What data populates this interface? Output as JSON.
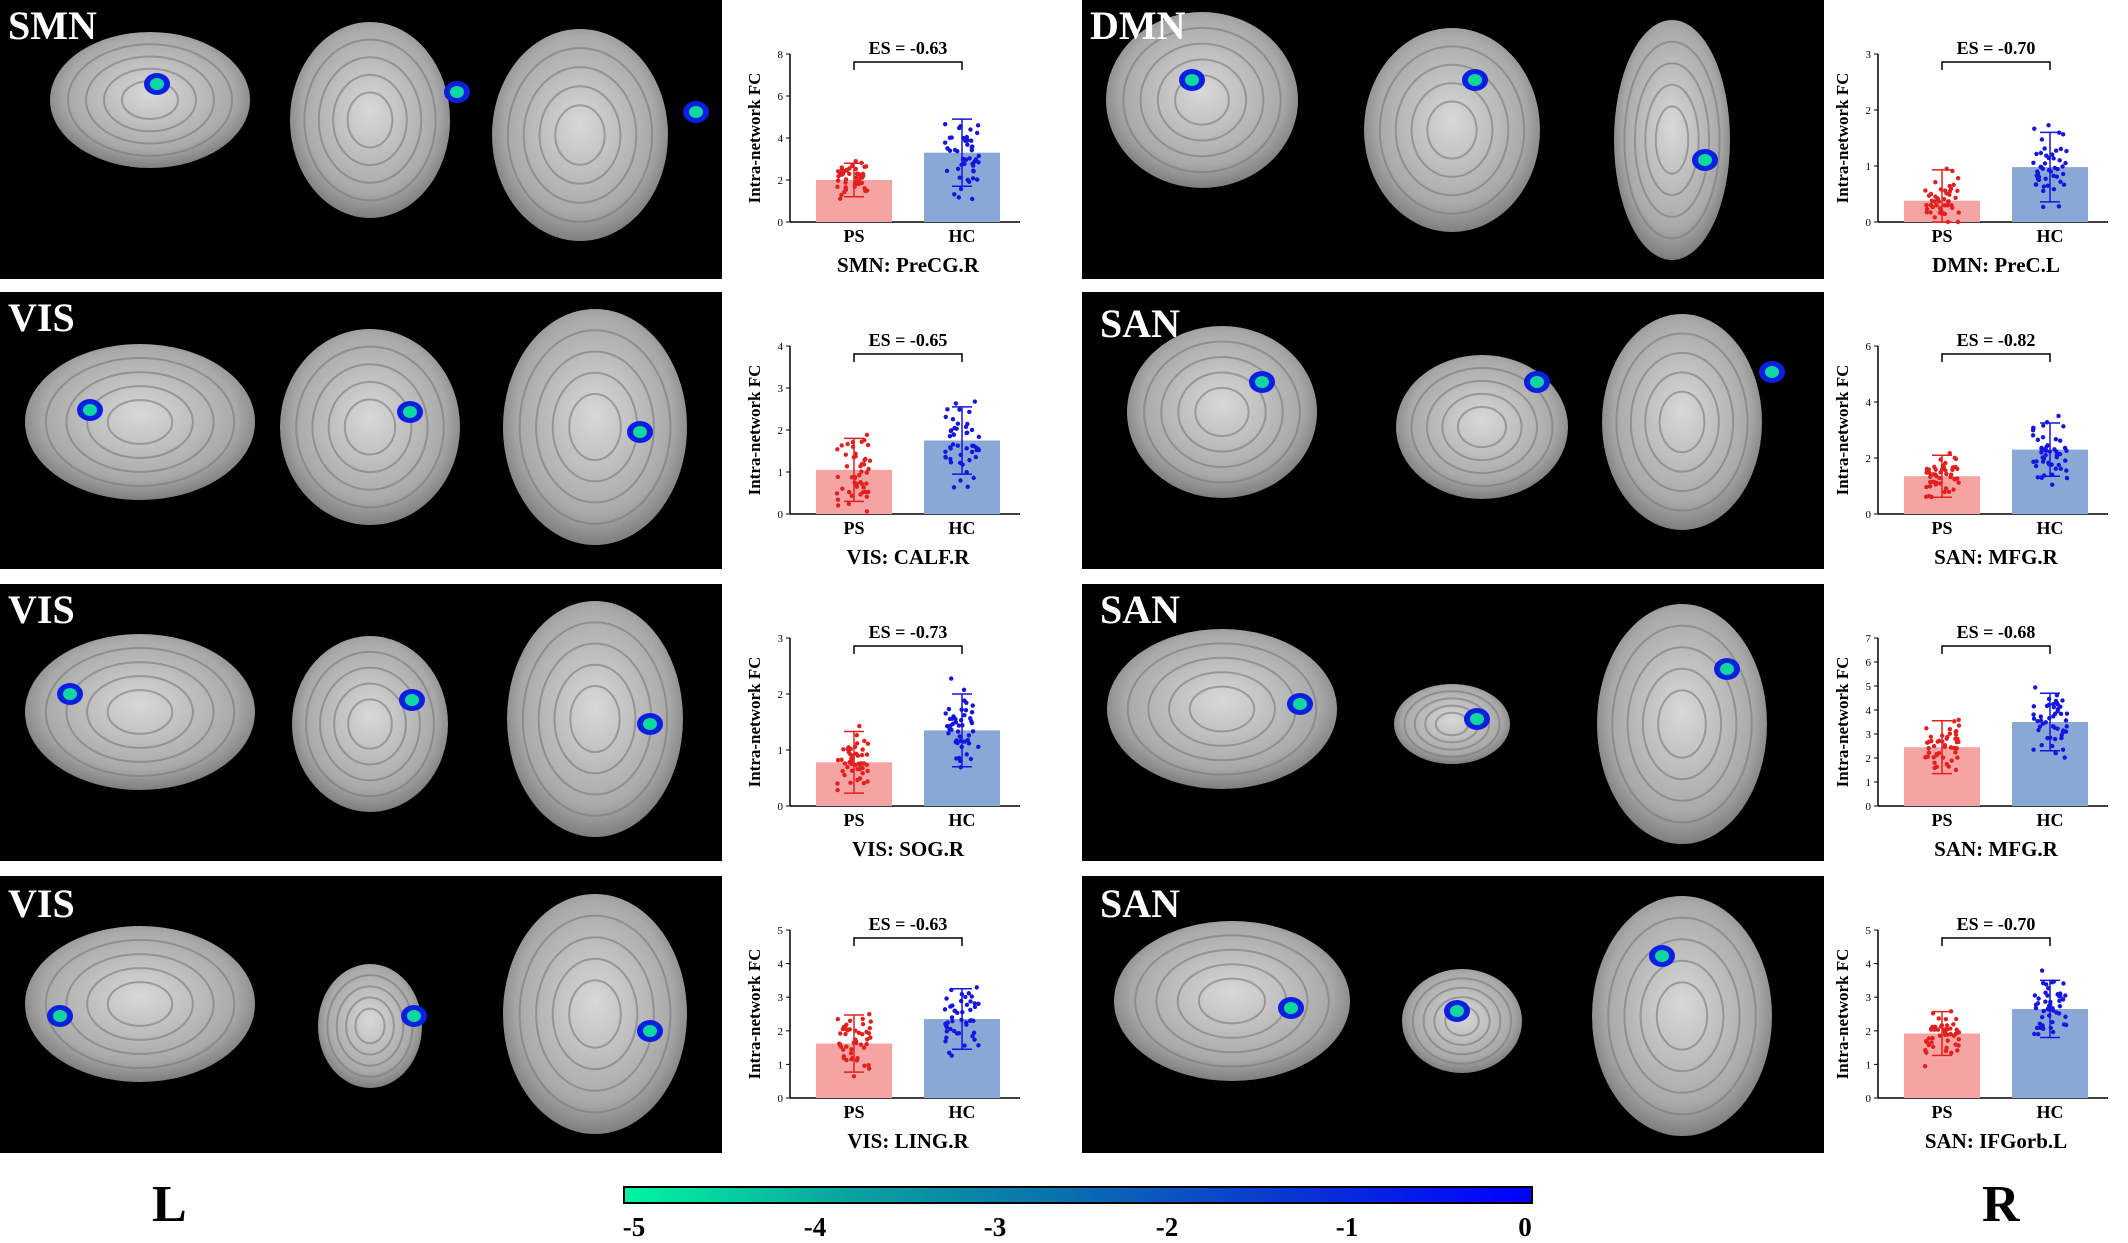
{
  "colors": {
    "ps_bar": "#f5a3a3",
    "ps_dot": "#e32020",
    "hc_bar": "#89a8d6",
    "hc_dot": "#1515e0",
    "background": "#000000"
  },
  "side_labels": {
    "left": "L",
    "right": "R"
  },
  "colorbar": {
    "ticks": [
      "-5",
      "-4",
      "-3",
      "-2",
      "-1",
      "0"
    ],
    "range": [
      -5,
      0
    ]
  },
  "panels": [
    {
      "network": "SMN"
    },
    {
      "network": "DMN"
    },
    {
      "network": "VIS"
    },
    {
      "network": "SAN"
    },
    {
      "network": "VIS"
    },
    {
      "network": "SAN"
    },
    {
      "network": "VIS"
    },
    {
      "network": "SAN"
    }
  ],
  "chart_data": [
    {
      "type": "bar",
      "es": "ES = -0.63",
      "ylabel": "Intra-network FC",
      "categories": [
        "PS",
        "HC"
      ],
      "ylim": [
        0,
        8
      ],
      "yticks": [
        "0",
        "2",
        "4",
        "6",
        "8"
      ],
      "values": [
        2.0,
        3.3
      ],
      "sd": [
        0.8,
        1.6
      ],
      "xlabel": "SMN: PreCG.R"
    },
    {
      "type": "bar",
      "es": "ES = -0.70",
      "ylabel": "Intra-network FC",
      "categories": [
        "PS",
        "HC"
      ],
      "ylim": [
        0,
        3
      ],
      "yticks": [
        "0",
        "1",
        "2",
        "3"
      ],
      "values": [
        0.38,
        0.98
      ],
      "sd": [
        0.55,
        0.62
      ],
      "xlabel": "DMN: PreC.L"
    },
    {
      "type": "bar",
      "es": "ES = -0.65",
      "ylabel": "Intra-network FC",
      "categories": [
        "PS",
        "HC"
      ],
      "ylim": [
        0,
        4
      ],
      "yticks": [
        "0",
        "1",
        "2",
        "3",
        "4"
      ],
      "values": [
        1.05,
        1.75
      ],
      "sd": [
        0.75,
        0.8
      ],
      "xlabel": "VIS: CALF.R"
    },
    {
      "type": "bar",
      "es": "ES = -0.82",
      "ylabel": "Intra-network FC",
      "categories": [
        "PS",
        "HC"
      ],
      "ylim": [
        0,
        6
      ],
      "yticks": [
        "0",
        "2",
        "4",
        "6"
      ],
      "values": [
        1.35,
        2.3
      ],
      "sd": [
        0.75,
        0.95
      ],
      "xlabel": "SAN: MFG.R"
    },
    {
      "type": "bar",
      "es": "ES = -0.73",
      "ylabel": "Intra-network FC",
      "categories": [
        "PS",
        "HC"
      ],
      "ylim": [
        0,
        3
      ],
      "yticks": [
        "0",
        "1",
        "2",
        "3"
      ],
      "values": [
        0.78,
        1.35
      ],
      "sd": [
        0.55,
        0.65
      ],
      "xlabel": "VIS: SOG.R"
    },
    {
      "type": "bar",
      "es": "ES = -0.68",
      "ylabel": "Intra-network FC",
      "categories": [
        "PS",
        "HC"
      ],
      "ylim": [
        0,
        7
      ],
      "yticks": [
        "0",
        "1",
        "2",
        "3",
        "4",
        "5",
        "6",
        "7"
      ],
      "values": [
        2.45,
        3.5
      ],
      "sd": [
        1.1,
        1.2
      ],
      "xlabel": "SAN: MFG.R"
    },
    {
      "type": "bar",
      "es": "ES = -0.63",
      "ylabel": "Intra-network FC",
      "categories": [
        "PS",
        "HC"
      ],
      "ylim": [
        0,
        5
      ],
      "yticks": [
        "0",
        "1",
        "2",
        "3",
        "4",
        "5"
      ],
      "values": [
        1.62,
        2.35
      ],
      "sd": [
        0.85,
        0.9
      ],
      "xlabel": "VIS: LING.R"
    },
    {
      "type": "bar",
      "es": "ES = -0.70",
      "ylabel": "Intra-network FC",
      "categories": [
        "PS",
        "HC"
      ],
      "ylim": [
        0,
        5
      ],
      "yticks": [
        "0",
        "1",
        "2",
        "3",
        "4",
        "5"
      ],
      "values": [
        1.92,
        2.65
      ],
      "sd": [
        0.65,
        0.85
      ],
      "xlabel": "SAN: IFGorb.L"
    }
  ]
}
